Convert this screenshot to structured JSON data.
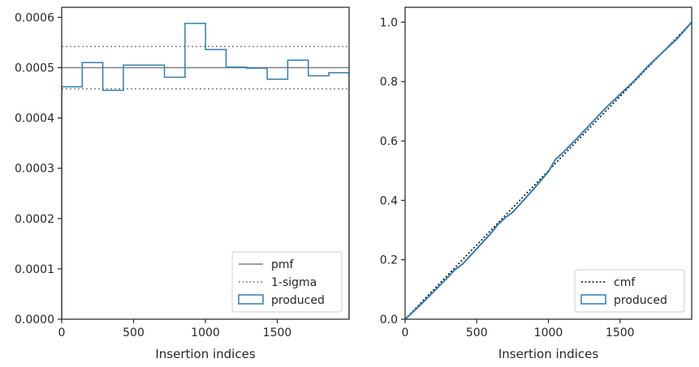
{
  "chart_data": [
    {
      "type": "histogram",
      "xlabel": "Insertion indices",
      "ylabel": "",
      "xlim": [
        0,
        2000
      ],
      "ylim": [
        0,
        0.00062
      ],
      "xticks": [
        0,
        500,
        1000,
        1500
      ],
      "xtick_labels": [
        "0",
        "500",
        "1000",
        "1500"
      ],
      "yticks": [
        0,
        0.0001,
        0.0002,
        0.0003,
        0.0004,
        0.0005,
        0.0006
      ],
      "ytick_labels": [
        "0.0000",
        "0.0001",
        "0.0002",
        "0.0003",
        "0.0004",
        "0.0005",
        "0.0006"
      ],
      "grid": false,
      "legend_position": "lower-right",
      "reference_lines": [
        {
          "name": "pmf",
          "y": 0.0005,
          "style": "solid",
          "color": "#808080"
        },
        {
          "name": "1-sigma",
          "y": 0.000542,
          "style": "dotted",
          "color": "#808080"
        },
        {
          "name": "1-sigma",
          "y": 0.000458,
          "style": "dotted",
          "color": "#808080"
        }
      ],
      "series": [
        {
          "name": "produced",
          "color": "#2e7fb0",
          "bin_edges": [
            0,
            143,
            286,
            429,
            572,
            715,
            858,
            1001,
            1144,
            1287,
            1430,
            1573,
            1716,
            1859,
            2000
          ],
          "values": [
            0.000462,
            0.00051,
            0.000455,
            0.000505,
            0.000505,
            0.000481,
            0.000588,
            0.000536,
            0.000501,
            0.000499,
            0.000477,
            0.000515,
            0.000484,
            0.00049
          ]
        }
      ],
      "legend": [
        {
          "label": "pmf",
          "kind": "solid-line",
          "color": "#808080"
        },
        {
          "label": "1-sigma",
          "kind": "dotted-line",
          "color": "#808080"
        },
        {
          "label": "produced",
          "kind": "patch",
          "color": "#2e7fb0"
        }
      ]
    },
    {
      "type": "line",
      "xlabel": "Insertion indices",
      "ylabel": "",
      "xlim": [
        0,
        2000
      ],
      "ylim": [
        0,
        1.05
      ],
      "xticks": [
        0,
        500,
        1000,
        1500
      ],
      "xtick_labels": [
        "0",
        "500",
        "1000",
        "1500"
      ],
      "yticks": [
        0,
        0.2,
        0.4,
        0.6,
        0.8,
        1.0
      ],
      "ytick_labels": [
        "0.0",
        "0.2",
        "0.4",
        "0.6",
        "0.8",
        "1.0"
      ],
      "grid": false,
      "legend_position": "lower-right",
      "series": [
        {
          "name": "cmf",
          "style": "dotted",
          "color": "#000000",
          "x": [
            0,
            2000
          ],
          "y": [
            0,
            1.0
          ]
        },
        {
          "name": "produced",
          "style": "solid",
          "color": "#2e7fb0",
          "x": [
            0,
            50,
            100,
            200,
            300,
            350,
            400,
            500,
            600,
            650,
            700,
            750,
            800,
            900,
            1000,
            1050,
            1100,
            1200,
            1300,
            1400,
            1500,
            1600,
            1700,
            1800,
            1900,
            2000
          ],
          "y": [
            0,
            0.022,
            0.045,
            0.093,
            0.142,
            0.168,
            0.185,
            0.237,
            0.29,
            0.32,
            0.342,
            0.36,
            0.386,
            0.44,
            0.497,
            0.538,
            0.56,
            0.609,
            0.66,
            0.711,
            0.757,
            0.803,
            0.854,
            0.9,
            0.945,
            1.0
          ]
        }
      ],
      "legend": [
        {
          "label": "cmf",
          "kind": "dotted-line",
          "color": "#000000"
        },
        {
          "label": "produced",
          "kind": "patch",
          "color": "#2e7fb0"
        }
      ]
    }
  ]
}
